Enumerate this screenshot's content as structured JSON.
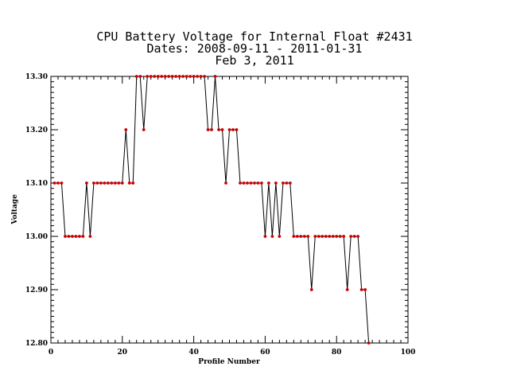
{
  "chart_data": {
    "type": "line",
    "title_lines": [
      "CPU Battery Voltage for Internal Float #2431",
      "Dates:  2008-09-11 -  2011-01-31",
      "Feb  3, 2011"
    ],
    "xlabel": "Profile Number",
    "ylabel": "Voltage",
    "xlim": [
      0,
      100
    ],
    "ylim": [
      12.8,
      13.3
    ],
    "x_ticks": [
      0,
      20,
      40,
      60,
      80,
      100
    ],
    "x_tick_labels": [
      "0",
      "20",
      "40",
      "60",
      "80",
      "100"
    ],
    "y_ticks": [
      12.8,
      12.9,
      13.0,
      13.1,
      13.2,
      13.3
    ],
    "y_tick_labels": [
      "12.80",
      "12.90",
      "13.00",
      "13.10",
      "13.20",
      "13.30"
    ],
    "line_color": "#000000",
    "marker_color": "#cc0000",
    "grid": false,
    "series": [
      {
        "x": [
          1,
          2,
          3,
          4,
          5,
          6,
          7,
          8,
          9,
          10,
          11,
          12,
          13,
          14,
          15,
          16,
          17,
          18,
          19,
          20,
          21,
          22,
          23,
          24,
          25,
          26,
          27,
          28,
          29,
          30,
          31,
          32,
          33,
          34,
          35,
          36,
          37,
          38,
          39,
          40,
          41,
          42,
          43,
          44,
          45,
          46,
          47,
          48,
          49,
          50,
          51,
          52,
          53,
          54,
          55,
          56,
          57,
          58,
          59,
          60,
          61,
          62,
          63,
          64,
          65,
          66,
          67,
          68,
          69,
          70,
          71,
          72,
          73,
          74,
          75,
          76,
          77,
          78,
          79,
          80,
          81,
          82,
          83,
          84,
          85,
          86,
          87,
          88,
          89
        ],
        "y": [
          13.1,
          13.1,
          13.1,
          13.0,
          13.0,
          13.0,
          13.0,
          13.0,
          13.0,
          13.1,
          13.0,
          13.1,
          13.1,
          13.1,
          13.1,
          13.1,
          13.1,
          13.1,
          13.1,
          13.1,
          13.2,
          13.1,
          13.1,
          13.3,
          13.3,
          13.2,
          13.3,
          13.3,
          13.3,
          13.3,
          13.3,
          13.3,
          13.3,
          13.3,
          13.3,
          13.3,
          13.3,
          13.3,
          13.3,
          13.3,
          13.3,
          13.3,
          13.3,
          13.2,
          13.2,
          13.3,
          13.2,
          13.2,
          13.1,
          13.2,
          13.2,
          13.2,
          13.1,
          13.1,
          13.1,
          13.1,
          13.1,
          13.1,
          13.1,
          13.0,
          13.1,
          13.0,
          13.1,
          13.0,
          13.1,
          13.1,
          13.1,
          13.0,
          13.0,
          13.0,
          13.0,
          13.0,
          12.9,
          13.0,
          13.0,
          13.0,
          13.0,
          13.0,
          13.0,
          13.0,
          13.0,
          13.0,
          12.9,
          13.0,
          13.0,
          13.0,
          12.9,
          12.9,
          12.8
        ]
      }
    ]
  }
}
